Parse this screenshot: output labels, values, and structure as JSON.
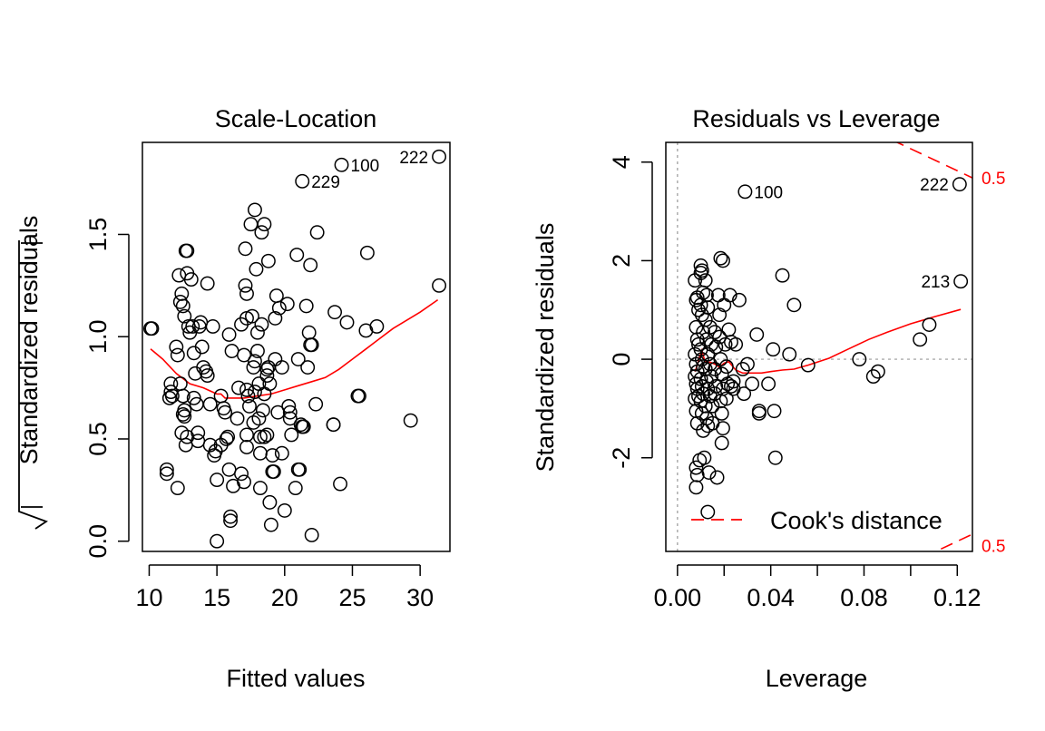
{
  "chart_data": [
    {
      "type": "scatter",
      "title": "Scale-Location",
      "xlabel": "Fitted values",
      "ylabel": "√|Standardized residuals|",
      "ylabel_text": "Standardized residuals",
      "xlim": [
        9.5,
        32.2
      ],
      "ylim": [
        -0.05,
        1.95
      ],
      "xticks": [
        10,
        15,
        20,
        25,
        30
      ],
      "yticks": [
        0.0,
        0.5,
        1.0,
        1.5
      ],
      "xtick_labels": [
        "10",
        "15",
        "20",
        "25",
        "30"
      ],
      "ytick_labels": [
        "0.0",
        "0.5",
        "1.0",
        "1.5"
      ],
      "points": [
        [
          10.2,
          1.04
        ],
        [
          10.1,
          1.04
        ],
        [
          11.3,
          0.35
        ],
        [
          11.3,
          0.33
        ],
        [
          11.6,
          0.77
        ],
        [
          11.6,
          0.73
        ],
        [
          11.5,
          0.7
        ],
        [
          11.7,
          0.71
        ],
        [
          12.0,
          0.95
        ],
        [
          12.1,
          0.91
        ],
        [
          12.1,
          0.26
        ],
        [
          12.2,
          1.3
        ],
        [
          12.3,
          0.77
        ],
        [
          12.4,
          0.53
        ],
        [
          12.4,
          1.21
        ],
        [
          12.3,
          1.17
        ],
        [
          12.5,
          1.15
        ],
        [
          12.6,
          1.1
        ],
        [
          12.5,
          0.71
        ],
        [
          12.6,
          0.64
        ],
        [
          12.5,
          0.62
        ],
        [
          12.6,
          0.61
        ],
        [
          12.7,
          0.47
        ],
        [
          12.8,
          0.51
        ],
        [
          12.7,
          1.42
        ],
        [
          12.8,
          1.42
        ],
        [
          12.8,
          1.31
        ],
        [
          12.9,
          1.05
        ],
        [
          13.0,
          1.02
        ],
        [
          13.1,
          1.28
        ],
        [
          13.2,
          1.05
        ],
        [
          13.3,
          0.92
        ],
        [
          13.4,
          0.82
        ],
        [
          13.3,
          0.7
        ],
        [
          13.5,
          0.67
        ],
        [
          13.6,
          0.49
        ],
        [
          13.6,
          0.53
        ],
        [
          13.7,
          1.05
        ],
        [
          13.8,
          1.07
        ],
        [
          13.9,
          0.95
        ],
        [
          14.0,
          0.85
        ],
        [
          14.2,
          0.83
        ],
        [
          14.3,
          0.81
        ],
        [
          14.3,
          1.26
        ],
        [
          14.5,
          0.47
        ],
        [
          14.5,
          0.67
        ],
        [
          14.7,
          1.05
        ],
        [
          14.8,
          0.42
        ],
        [
          14.9,
          0.44
        ],
        [
          15.0,
          0.3
        ],
        [
          15.0,
          0.0
        ],
        [
          15.3,
          0.71
        ],
        [
          15.3,
          0.47
        ],
        [
          15.5,
          0.65
        ],
        [
          15.6,
          0.63
        ],
        [
          15.7,
          0.5
        ],
        [
          15.8,
          0.51
        ],
        [
          15.9,
          1.01
        ],
        [
          15.9,
          0.35
        ],
        [
          16.0,
          0.1
        ],
        [
          16.0,
          0.12
        ],
        [
          16.1,
          0.93
        ],
        [
          16.2,
          0.27
        ],
        [
          16.5,
          0.6
        ],
        [
          16.6,
          0.75
        ],
        [
          16.8,
          0.33
        ],
        [
          16.8,
          1.06
        ],
        [
          17.0,
          0.91
        ],
        [
          17.0,
          0.29
        ],
        [
          17.1,
          1.43
        ],
        [
          17.1,
          1.25
        ],
        [
          17.2,
          1.21
        ],
        [
          17.2,
          1.09
        ],
        [
          17.3,
          0.71
        ],
        [
          17.2,
          0.74
        ],
        [
          17.2,
          0.52
        ],
        [
          17.2,
          0.46
        ],
        [
          17.4,
          0.66
        ],
        [
          17.5,
          1.55
        ],
        [
          17.6,
          1.1
        ],
        [
          17.7,
          0.58
        ],
        [
          17.7,
          0.85
        ],
        [
          17.8,
          0.88
        ],
        [
          17.8,
          0.73
        ],
        [
          17.8,
          1.62
        ],
        [
          17.9,
          1.33
        ],
        [
          18.0,
          1.02
        ],
        [
          18.0,
          0.93
        ],
        [
          18.1,
          0.77
        ],
        [
          18.1,
          0.6
        ],
        [
          18.2,
          0.43
        ],
        [
          18.2,
          0.26
        ],
        [
          18.2,
          0.51
        ],
        [
          18.3,
          1.06
        ],
        [
          18.3,
          1.51
        ],
        [
          18.4,
          0.64
        ],
        [
          18.5,
          1.55
        ],
        [
          18.5,
          0.72
        ],
        [
          18.5,
          0.51
        ],
        [
          18.7,
          0.81
        ],
        [
          18.7,
          0.52
        ],
        [
          18.7,
          0.84
        ],
        [
          18.8,
          0.85
        ],
        [
          18.8,
          1.37
        ],
        [
          18.9,
          0.77
        ],
        [
          18.9,
          0.19
        ],
        [
          19.0,
          0.08
        ],
        [
          19.1,
          0.42
        ],
        [
          19.1,
          0.34
        ],
        [
          19.2,
          0.34
        ],
        [
          19.3,
          1.09
        ],
        [
          19.3,
          0.89
        ],
        [
          19.4,
          1.2
        ],
        [
          19.5,
          0.63
        ],
        [
          19.6,
          1.14
        ],
        [
          19.8,
          0.43
        ],
        [
          19.8,
          0.85
        ],
        [
          20.0,
          0.15
        ],
        [
          20.2,
          1.16
        ],
        [
          20.3,
          0.66
        ],
        [
          20.4,
          0.6
        ],
        [
          20.4,
          0.63
        ],
        [
          20.5,
          0.52
        ],
        [
          20.8,
          0.26
        ],
        [
          20.9,
          1.4
        ],
        [
          21.0,
          0.89
        ],
        [
          21.0,
          0.35
        ],
        [
          21.1,
          0.35
        ],
        [
          21.2,
          0.57
        ],
        [
          21.3,
          0.56
        ],
        [
          21.3,
          0.56
        ],
        [
          21.4,
          0.56
        ],
        [
          21.3,
          1.76
        ],
        [
          21.6,
          1.15
        ],
        [
          21.7,
          0.85
        ],
        [
          21.8,
          1.02
        ],
        [
          21.9,
          0.96
        ],
        [
          22.0,
          0.96
        ],
        [
          21.9,
          1.35
        ],
        [
          22.0,
          0.03
        ],
        [
          22.3,
          0.67
        ],
        [
          22.4,
          1.51
        ],
        [
          23.6,
          0.57
        ],
        [
          23.6,
          0.57
        ],
        [
          23.7,
          1.12
        ],
        [
          24.1,
          0.28
        ],
        [
          24.2,
          1.84
        ],
        [
          24.6,
          1.07
        ],
        [
          25.4,
          0.71
        ],
        [
          25.5,
          0.71
        ],
        [
          26.0,
          1.03
        ],
        [
          26.1,
          1.41
        ],
        [
          26.8,
          1.05
        ],
        [
          29.3,
          0.59
        ],
        [
          31.4,
          1.25
        ],
        [
          31.4,
          1.88
        ]
      ],
      "labels": [
        {
          "text": "100",
          "x": 24.2,
          "y": 1.84
        },
        {
          "text": "222",
          "x": 31.4,
          "y": 1.88
        },
        {
          "text": "229",
          "x": 21.3,
          "y": 1.76
        }
      ],
      "smoother": [
        [
          10.1,
          0.94
        ],
        [
          11.0,
          0.89
        ],
        [
          12.0,
          0.82
        ],
        [
          13.0,
          0.77
        ],
        [
          14.0,
          0.75
        ],
        [
          15.0,
          0.72
        ],
        [
          15.3,
          0.72
        ],
        [
          15.6,
          0.7
        ],
        [
          16.0,
          0.7
        ],
        [
          17.0,
          0.7
        ],
        [
          18.0,
          0.71
        ],
        [
          19.0,
          0.72
        ],
        [
          20.0,
          0.74
        ],
        [
          21.0,
          0.76
        ],
        [
          22.0,
          0.78
        ],
        [
          23.0,
          0.8
        ],
        [
          24.0,
          0.84
        ],
        [
          25.0,
          0.89
        ],
        [
          26.0,
          0.94
        ],
        [
          27.0,
          0.99
        ],
        [
          28.0,
          1.04
        ],
        [
          29.0,
          1.08
        ],
        [
          30.0,
          1.12
        ],
        [
          31.3,
          1.18
        ]
      ]
    },
    {
      "type": "scatter",
      "title": "Residuals vs Leverage",
      "xlabel": "Leverage",
      "ylabel": "Standardized residuals",
      "xlim": [
        -0.005,
        0.1265
      ],
      "ylim": [
        -3.9,
        4.4
      ],
      "xticks": [
        0.0,
        0.02,
        0.04,
        0.06,
        0.08,
        0.1,
        0.12
      ],
      "xtick_labels": [
        "0.00",
        "",
        "0.04",
        "",
        "0.08",
        "",
        "0.12"
      ],
      "yticks": [
        -2,
        0,
        2,
        4
      ],
      "ytick_labels": [
        "-2",
        "0",
        "2",
        "4"
      ],
      "legend": {
        "label": "Cook's distance",
        "placement": "bottom-right"
      },
      "cooks_label": "0.5",
      "points": [
        [
          0.0075,
          1.6
        ],
        [
          0.008,
          1.2
        ],
        [
          0.0085,
          1.25
        ],
        [
          0.009,
          1.0
        ],
        [
          0.008,
          0.65
        ],
        [
          0.0085,
          0.4
        ],
        [
          0.009,
          0.3
        ],
        [
          0.0075,
          0.1
        ],
        [
          0.008,
          -0.1
        ],
        [
          0.0085,
          -0.25
        ],
        [
          0.0075,
          -0.35
        ],
        [
          0.008,
          -0.5
        ],
        [
          0.0085,
          -0.6
        ],
        [
          0.009,
          -0.75
        ],
        [
          0.0075,
          -0.8
        ],
        [
          0.008,
          -1.05
        ],
        [
          0.0085,
          -1.3
        ],
        [
          0.008,
          -2.2
        ],
        [
          0.0085,
          -2.35
        ],
        [
          0.008,
          -2.6
        ],
        [
          0.0095,
          -2.05
        ],
        [
          0.01,
          1.75
        ],
        [
          0.01,
          1.9
        ],
        [
          0.0105,
          1.8
        ],
        [
          0.011,
          1.35
        ],
        [
          0.01,
          1.1
        ],
        [
          0.0105,
          0.9
        ],
        [
          0.011,
          0.55
        ],
        [
          0.01,
          0.2
        ],
        [
          0.0105,
          0.0
        ],
        [
          0.011,
          -0.15
        ],
        [
          0.01,
          -0.4
        ],
        [
          0.0105,
          -0.55
        ],
        [
          0.011,
          -0.7
        ],
        [
          0.01,
          -0.85
        ],
        [
          0.0105,
          -1.1
        ],
        [
          0.011,
          -1.45
        ],
        [
          0.0115,
          -2.0
        ],
        [
          0.012,
          1.6
        ],
        [
          0.0125,
          1.3
        ],
        [
          0.013,
          1.05
        ],
        [
          0.012,
          0.8
        ],
        [
          0.0125,
          0.4
        ],
        [
          0.013,
          0.1
        ],
        [
          0.012,
          -0.2
        ],
        [
          0.0125,
          -0.45
        ],
        [
          0.013,
          -0.6
        ],
        [
          0.012,
          -0.95
        ],
        [
          0.0125,
          -1.2
        ],
        [
          0.013,
          -1.35
        ],
        [
          0.013,
          -3.1
        ],
        [
          0.0135,
          -2.3
        ],
        [
          0.014,
          0.65
        ],
        [
          0.0145,
          0.3
        ],
        [
          0.014,
          -0.1
        ],
        [
          0.0145,
          -0.35
        ],
        [
          0.014,
          -0.75
        ],
        [
          0.015,
          -0.95
        ],
        [
          0.015,
          -1.3
        ],
        [
          0.016,
          0.55
        ],
        [
          0.0165,
          0.25
        ],
        [
          0.016,
          -0.2
        ],
        [
          0.0165,
          -0.55
        ],
        [
          0.016,
          -0.7
        ],
        [
          0.017,
          -2.4
        ],
        [
          0.0175,
          1.3
        ],
        [
          0.018,
          0.9
        ],
        [
          0.018,
          0.45
        ],
        [
          0.0185,
          2.05
        ],
        [
          0.0195,
          2.0
        ],
        [
          0.0185,
          0.0
        ],
        [
          0.019,
          -0.3
        ],
        [
          0.0195,
          -0.6
        ],
        [
          0.0185,
          -0.85
        ],
        [
          0.019,
          -1.1
        ],
        [
          0.0195,
          -1.4
        ],
        [
          0.019,
          -1.7
        ],
        [
          0.02,
          1.1
        ],
        [
          0.0205,
          0.3
        ],
        [
          0.021,
          -0.15
        ],
        [
          0.0215,
          -0.5
        ],
        [
          0.021,
          -0.8
        ],
        [
          0.0225,
          1.3
        ],
        [
          0.022,
          0.6
        ],
        [
          0.023,
          0.35
        ],
        [
          0.023,
          -0.55
        ],
        [
          0.024,
          -0.6
        ],
        [
          0.024,
          -0.45
        ],
        [
          0.025,
          0.3
        ],
        [
          0.0265,
          1.2
        ],
        [
          0.028,
          -0.2
        ],
        [
          0.0285,
          -0.7
        ],
        [
          0.029,
          3.4
        ],
        [
          0.03,
          -0.1
        ],
        [
          0.032,
          -0.5
        ],
        [
          0.034,
          0.5
        ],
        [
          0.035,
          -1.05
        ],
        [
          0.035,
          -1.1
        ],
        [
          0.039,
          -0.5
        ],
        [
          0.041,
          0.2
        ],
        [
          0.0415,
          -1.05
        ],
        [
          0.042,
          -2.0
        ],
        [
          0.045,
          1.7
        ],
        [
          0.048,
          0.1
        ],
        [
          0.05,
          1.1
        ],
        [
          0.056,
          -0.12
        ],
        [
          0.078,
          0.0
        ],
        [
          0.084,
          -0.35
        ],
        [
          0.086,
          -0.25
        ],
        [
          0.104,
          0.4
        ],
        [
          0.108,
          0.7
        ],
        [
          0.121,
          3.55
        ],
        [
          0.1215,
          1.58
        ]
      ],
      "labels": [
        {
          "text": "100",
          "x": 0.029,
          "y": 3.4
        },
        {
          "text": "222",
          "x": 0.121,
          "y": 3.55
        },
        {
          "text": "213",
          "x": 0.1215,
          "y": 1.58
        }
      ],
      "smoother": [
        [
          0.0075,
          -0.25
        ],
        [
          0.0085,
          -0.12
        ],
        [
          0.0095,
          0.05
        ],
        [
          0.0105,
          0.18
        ],
        [
          0.0115,
          0.0
        ],
        [
          0.0125,
          -0.08
        ],
        [
          0.014,
          -0.06
        ],
        [
          0.016,
          -0.1
        ],
        [
          0.018,
          -0.16
        ],
        [
          0.02,
          -0.08
        ],
        [
          0.022,
          -0.05
        ],
        [
          0.025,
          -0.22
        ],
        [
          0.028,
          -0.28
        ],
        [
          0.032,
          -0.28
        ],
        [
          0.036,
          -0.28
        ],
        [
          0.04,
          -0.25
        ],
        [
          0.045,
          -0.22
        ],
        [
          0.05,
          -0.2
        ],
        [
          0.056,
          -0.12
        ],
        [
          0.065,
          0.02
        ],
        [
          0.073,
          0.2
        ],
        [
          0.082,
          0.4
        ],
        [
          0.09,
          0.55
        ],
        [
          0.1,
          0.72
        ],
        [
          0.11,
          0.86
        ],
        [
          0.1215,
          1.01
        ]
      ],
      "cooks_upper": [
        [
          0.092,
          4.45
        ],
        [
          0.1265,
          3.68
        ]
      ],
      "cooks_lower": [
        [
          0.113,
          -3.85
        ],
        [
          0.1265,
          -3.55
        ]
      ]
    }
  ]
}
